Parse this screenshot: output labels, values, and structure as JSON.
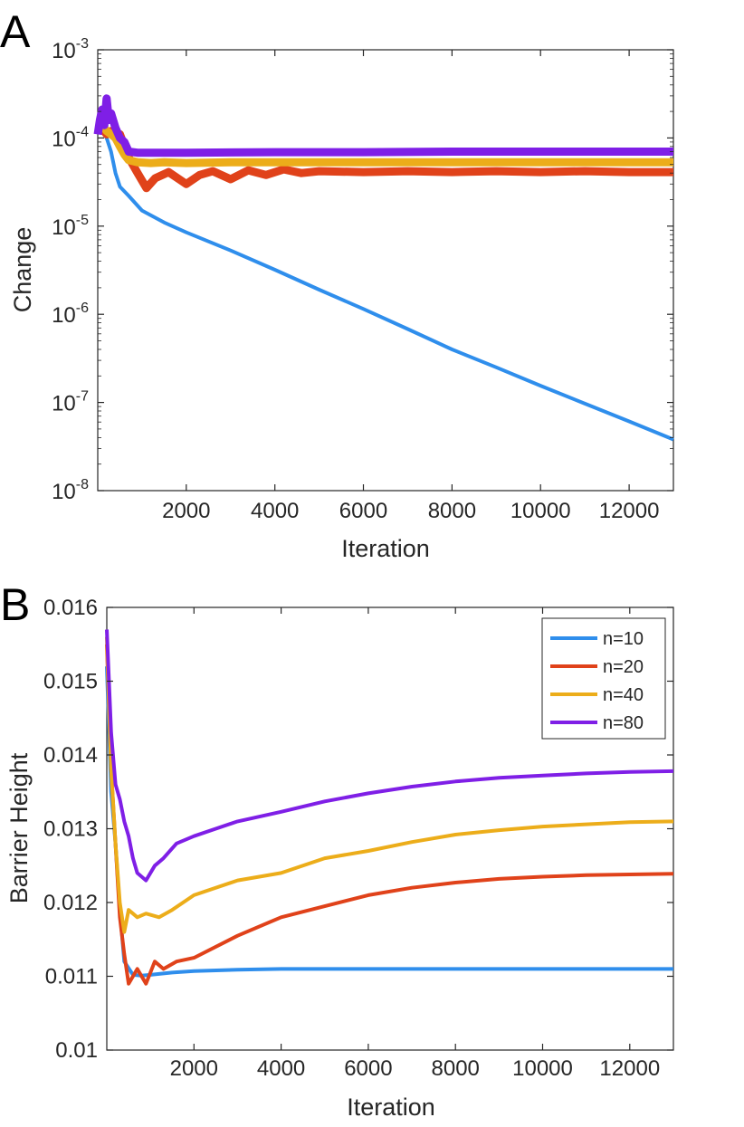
{
  "chart_data": [
    {
      "panel_label": "A",
      "type": "line",
      "y_scale": "log",
      "xlabel": "Iteration",
      "ylabel": "Change",
      "xlim": [
        0,
        13000
      ],
      "ylim": [
        1e-08,
        0.001
      ],
      "x_ticks": [
        2000,
        4000,
        6000,
        8000,
        10000,
        12000
      ],
      "x_tick_labels": [
        "2000",
        "4000",
        "6000",
        "8000",
        "10000",
        "12000"
      ],
      "y_tick_exponents": [
        -8,
        -7,
        -6,
        -5,
        -4,
        -3
      ],
      "y_tick_base": "10",
      "series": [
        {
          "name": "n=10",
          "color": "#2f8eec",
          "x": [
            0,
            100,
            200,
            300,
            400,
            500,
            700,
            1000,
            1500,
            2000,
            3000,
            4000,
            5000,
            6000,
            7000,
            8000,
            9000,
            10000,
            11000,
            12000,
            13000
          ],
          "y": [
            0.00012,
            0.000125,
            0.0001,
            7e-05,
            4e-05,
            2.8e-05,
            2.2e-05,
            1.5e-05,
            1.1e-05,
            8.5e-06,
            5.3e-06,
            3.2e-06,
            1.9e-06,
            1.15e-06,
            6.8e-07,
            4e-07,
            2.5e-07,
            1.55e-07,
            9.7e-08,
            6.1e-08,
            3.8e-08
          ]
        },
        {
          "name": "n=20",
          "color": "#e0421a",
          "x": [
            0,
            100,
            200,
            300,
            400,
            500,
            700,
            900,
            1100,
            1300,
            1600,
            2000,
            2300,
            2600,
            3000,
            3400,
            3800,
            4200,
            4600,
            5000,
            6000,
            7000,
            8000,
            9000,
            10000,
            11000,
            12000,
            13000
          ],
          "y": [
            0.00012,
            0.00013,
            0.00011,
            0.00012,
            0.0001,
            0.00011,
            6e-05,
            4e-05,
            2.7e-05,
            3.5e-05,
            4.1e-05,
            3e-05,
            3.8e-05,
            4.2e-05,
            3.4e-05,
            4.3e-05,
            3.8e-05,
            4.4e-05,
            4e-05,
            4.2e-05,
            4.1e-05,
            4.2e-05,
            4.1e-05,
            4.2e-05,
            4.1e-05,
            4.2e-05,
            4.1e-05,
            4.1e-05
          ]
        },
        {
          "name": "n=40",
          "color": "#ecad1a",
          "x": [
            0,
            100,
            200,
            300,
            400,
            500,
            600,
            700,
            900,
            1200,
            1500,
            2000,
            3000,
            4000,
            6000,
            8000,
            10000,
            12000,
            13000
          ],
          "y": [
            0.00012,
            0.00014,
            0.00012,
            0.00011,
            0.0001,
            8e-05,
            6.5e-05,
            5.6e-05,
            5.3e-05,
            5.2e-05,
            5.3e-05,
            5.2e-05,
            5.3e-05,
            5.3e-05,
            5.3e-05,
            5.3e-05,
            5.3e-05,
            5.3e-05,
            5.3e-05
          ]
        },
        {
          "name": "n=80",
          "color": "#7f1fe6",
          "x": [
            0,
            50,
            100,
            150,
            200,
            250,
            300,
            400,
            500,
            600,
            700,
            900,
            1200,
            2000,
            4000,
            6000,
            8000,
            10000,
            12000,
            13000
          ],
          "y": [
            0.00011,
            0.00016,
            0.00021,
            0.00014,
            0.00028,
            0.00016,
            0.00019,
            0.00013,
            0.0001,
            9e-05,
            7e-05,
            6.8e-05,
            6.8e-05,
            6.8e-05,
            6.9e-05,
            6.9e-05,
            7e-05,
            7e-05,
            7e-05,
            7e-05
          ]
        }
      ]
    },
    {
      "panel_label": "B",
      "type": "line",
      "y_scale": "linear",
      "xlabel": "Iteration",
      "ylabel": "Barrier Height",
      "xlim": [
        0,
        13000
      ],
      "ylim": [
        0.01,
        0.016
      ],
      "x_ticks": [
        2000,
        4000,
        6000,
        8000,
        10000,
        12000
      ],
      "x_tick_labels": [
        "2000",
        "4000",
        "6000",
        "8000",
        "10000",
        "12000"
      ],
      "y_ticks": [
        0.01,
        0.011,
        0.012,
        0.013,
        0.014,
        0.015,
        0.016
      ],
      "y_tick_labels": [
        "0.01",
        "0.011",
        "0.012",
        "0.013",
        "0.014",
        "0.015",
        "0.016"
      ],
      "legend_position": "top-right",
      "series": [
        {
          "name": "n=10",
          "color": "#2f8eec",
          "x": [
            0,
            100,
            200,
            300,
            400,
            600,
            800,
            1000,
            1500,
            2000,
            3000,
            4000,
            5000,
            6000,
            8000,
            10000,
            12000,
            13000
          ],
          "y": [
            0.0152,
            0.0135,
            0.0128,
            0.0119,
            0.0112,
            0.01102,
            0.01101,
            0.01102,
            0.01105,
            0.01107,
            0.01109,
            0.0111,
            0.0111,
            0.0111,
            0.0111,
            0.0111,
            0.0111,
            0.0111
          ]
        },
        {
          "name": "n=20",
          "color": "#e0421a",
          "x": [
            0,
            100,
            200,
            300,
            400,
            500,
            700,
            900,
            1100,
            1300,
            1600,
            2000,
            3000,
            4000,
            5000,
            6000,
            7000,
            8000,
            9000,
            10000,
            11000,
            12000,
            13000
          ],
          "y": [
            0.0155,
            0.0138,
            0.0128,
            0.0118,
            0.0113,
            0.0109,
            0.0111,
            0.0109,
            0.0112,
            0.0111,
            0.0112,
            0.01125,
            0.01155,
            0.0118,
            0.01195,
            0.0121,
            0.0122,
            0.01227,
            0.01232,
            0.01235,
            0.01237,
            0.01238,
            0.01239
          ]
        },
        {
          "name": "n=40",
          "color": "#ecad1a",
          "x": [
            0,
            100,
            200,
            300,
            400,
            500,
            700,
            900,
            1200,
            1500,
            2000,
            3000,
            4000,
            5000,
            6000,
            7000,
            8000,
            9000,
            10000,
            11000,
            12000,
            13000
          ],
          "y": [
            0.0156,
            0.0138,
            0.0128,
            0.012,
            0.0116,
            0.0119,
            0.0118,
            0.01185,
            0.0118,
            0.0119,
            0.0121,
            0.0123,
            0.0124,
            0.0126,
            0.0127,
            0.01282,
            0.01292,
            0.01298,
            0.01303,
            0.01306,
            0.01309,
            0.0131
          ]
        },
        {
          "name": "n=80",
          "color": "#7f1fe6",
          "x": [
            0,
            100,
            200,
            300,
            400,
            500,
            600,
            700,
            900,
            1100,
            1300,
            1600,
            2000,
            2500,
            3000,
            4000,
            5000,
            6000,
            7000,
            8000,
            9000,
            10000,
            11000,
            12000,
            13000
          ],
          "y": [
            0.0157,
            0.0143,
            0.0136,
            0.0134,
            0.0131,
            0.0129,
            0.0126,
            0.0124,
            0.0123,
            0.0125,
            0.0126,
            0.0128,
            0.0129,
            0.013,
            0.0131,
            0.01323,
            0.01337,
            0.01348,
            0.01357,
            0.01364,
            0.01369,
            0.01372,
            0.01375,
            0.01377,
            0.01378
          ]
        }
      ]
    }
  ]
}
